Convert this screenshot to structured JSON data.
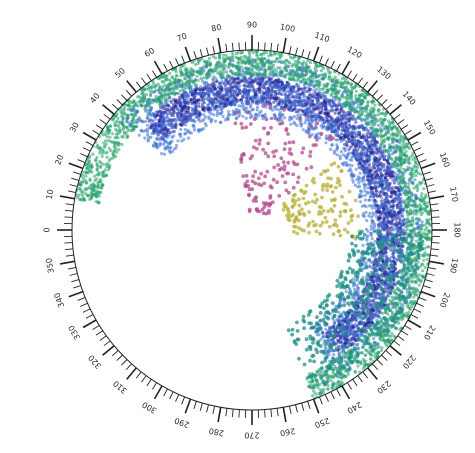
{
  "chart_data": {
    "type": "scatter",
    "subtype": "circular",
    "title": "",
    "angular_axis": {
      "min": 0,
      "max": 360,
      "direction": "clockwise",
      "zero_position": "left",
      "major_step": 10,
      "minor_step": 2,
      "tick_labels": [
        "0",
        "10",
        "20",
        "30",
        "40",
        "50",
        "60",
        "70",
        "80",
        "90",
        "100",
        "110",
        "120",
        "130",
        "140",
        "150",
        "160",
        "170",
        "180",
        "190",
        "200",
        "210",
        "220",
        "230",
        "240",
        "250",
        "260",
        "270",
        "280",
        "290",
        "300",
        "310",
        "320",
        "330",
        "340",
        "350"
      ]
    },
    "grid": false,
    "legend": "none",
    "colors": {
      "dense_core": "#24239a",
      "blue": "#3b6fd6",
      "cyan": "#23a8cf",
      "green": "#23a06a",
      "light_green": "#8fd0a0",
      "magenta": "#b24a8c",
      "olive": "#b8b23a",
      "teal": "#1f8f87",
      "pale": "#c7d9ef"
    },
    "series": [
      {
        "name": "",
        "color_key": "dense_core",
        "theta_range": [
          45,
          235
        ],
        "r_range": [
          0.7,
          0.85
        ],
        "density": "high"
      },
      {
        "name": "",
        "color_key": "blue",
        "theta_range": [
          40,
          240
        ],
        "r_range": [
          0.62,
          0.95
        ],
        "density": "high"
      },
      {
        "name": "",
        "color_key": "green",
        "theta_range": [
          10,
          250
        ],
        "r_range": [
          0.86,
          1.0
        ],
        "density": "high"
      },
      {
        "name": "",
        "color_key": "magenta",
        "theta_range": [
          80,
          135
        ],
        "r_range": [
          0.1,
          0.7
        ],
        "density": "low"
      },
      {
        "name": "",
        "color_key": "olive",
        "theta_range": [
          140,
          185
        ],
        "r_range": [
          0.2,
          0.6
        ],
        "density": "low"
      },
      {
        "name": "",
        "color_key": "teal",
        "theta_range": [
          180,
          250
        ],
        "r_range": [
          0.55,
          0.95
        ],
        "density": "medium"
      }
    ]
  }
}
